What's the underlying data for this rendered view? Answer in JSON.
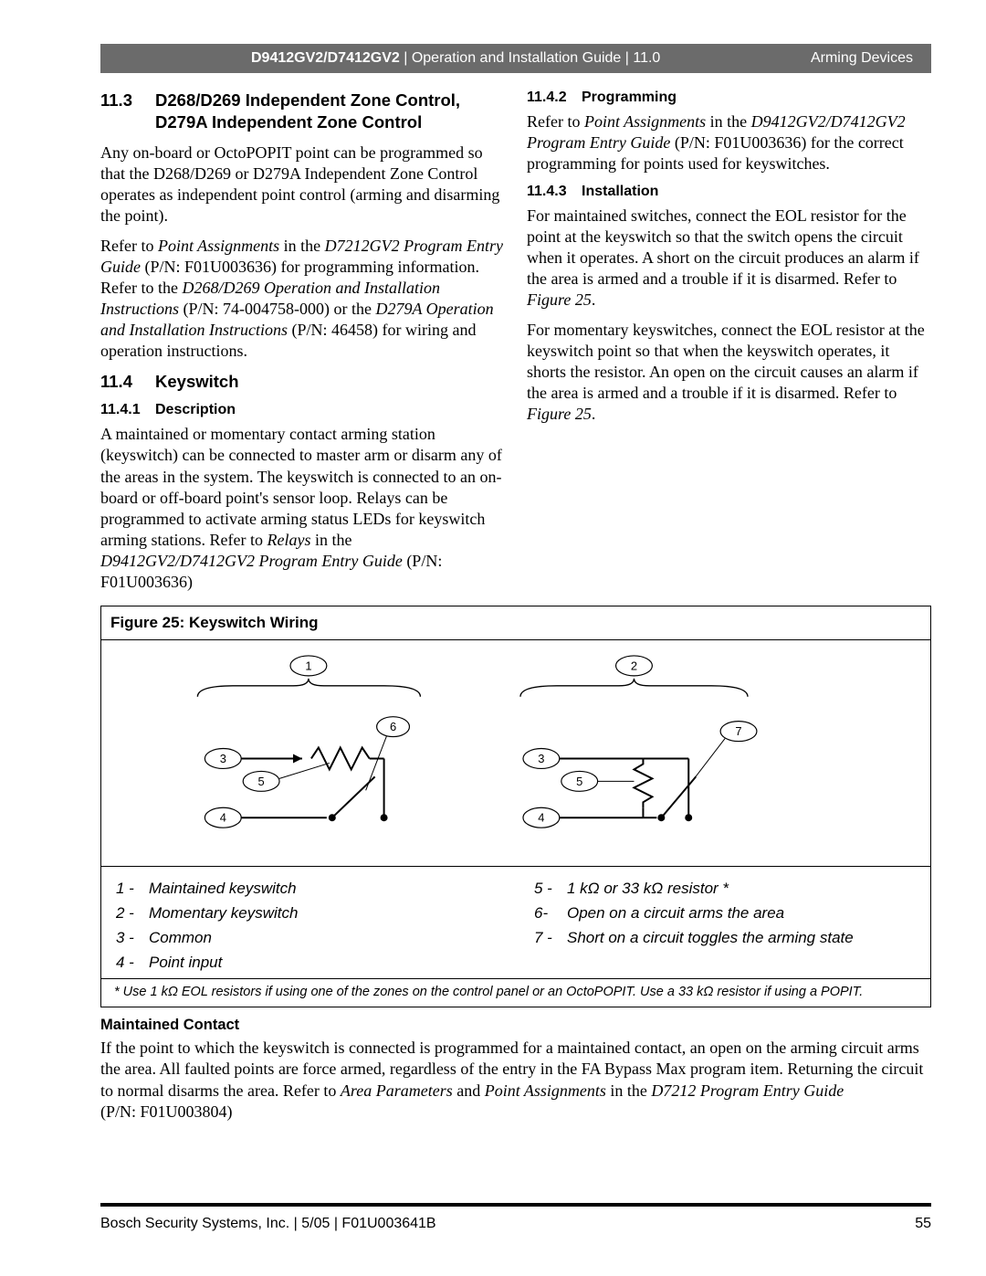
{
  "header": {
    "model_bold": "D9412GV2/D7412GV2",
    "model_rest": " | Operation and Installation Guide | 11.0",
    "right": "Arming Devices"
  },
  "left": {
    "sec11_3_num": "11.3",
    "sec11_3_title": "D268/D269 Independent Zone Control, D279A Independent Zone Control",
    "p1": "Any on-board or OctoPOPIT point can be programmed so that the D268/D269 or D279A Independent Zone Control operates as independent point control (arming and disarming the point).",
    "p2a": "Refer to ",
    "p2_i1": "Point Assignments",
    "p2b": " in the ",
    "p2_i2": "D7212GV2 Program Entry Guide",
    "p2c": " (P/N: F01U003636) for programming information. Refer to the ",
    "p2_i3": "D268/D269 Operation and Installation Instructions",
    "p2d": " (P/N: 74-004758-000) or the ",
    "p2_i4": "D279A Operation and Installation Instructions",
    "p2e": " (P/N: 46458) for wiring and operation instructions.",
    "sec11_4_num": "11.4",
    "sec11_4_title": "Keyswitch",
    "sub11_4_1_num": "11.4.1",
    "sub11_4_1_title": "Description",
    "p3a": "A maintained or momentary contact arming station (keyswitch) can be connected to master arm or disarm any of the areas in the system. The keyswitch is connected to an on-board or off-board point's sensor loop.  Relays can be programmed to activate arming status LEDs for keyswitch arming stations. Refer to ",
    "p3_i1": "Relays",
    "p3b": " in the ",
    "p3_i2": "D9412GV2/D7412GV2 Program Entry Guide",
    "p3c": " (P/N: F01U003636)"
  },
  "right": {
    "sub11_4_2_num": "11.4.2",
    "sub11_4_2_title": "Programming",
    "r1a": "Refer to ",
    "r1_i1": "Point Assignments",
    "r1b": " in the ",
    "r1_i2": "D9412GV2/D7412GV2 Program Entry Guide",
    "r1c": " (P/N: F01U003636) for the correct programming for points used for keyswitches.",
    "sub11_4_3_num": "11.4.3",
    "sub11_4_3_title": "Installation",
    "r2a": "For maintained switches, connect the EOL resistor for the point at the keyswitch so that the switch opens the circuit when it operates. A short on the circuit produces an alarm if the area is armed and a trouble if it is disarmed. Refer to ",
    "r2_i1": "Figure 25",
    "r2b": ".",
    "r3a": "For momentary keyswitches, connect the EOL resistor at the keyswitch point so that when the keyswitch operates, it shorts the resistor. An open on the circuit causes an alarm if the area is armed and a trouble if it is disarmed. Refer to ",
    "r3_i1": "Figure 25",
    "r3b": "."
  },
  "figure": {
    "title": "Figure 25:   Keyswitch Wiring",
    "bubbles": {
      "b1": "1",
      "b2": "2",
      "b3": "3",
      "b4": "4",
      "b5": "5",
      "b6": "6",
      "b7": "7"
    },
    "legend_left": [
      {
        "n": "1 -",
        "t": "Maintained keyswitch"
      },
      {
        "n": "2 -",
        "t": "Momentary keyswitch"
      },
      {
        "n": "3 -",
        "t": "Common"
      },
      {
        "n": "4 -",
        "t": "Point input"
      }
    ],
    "legend_right": [
      {
        "n": "5 -",
        "t": "1 kΩ or 33 kΩ resistor *"
      },
      {
        "n": "6-",
        "t": "Open on a circuit arms the area"
      },
      {
        "n": "7 -",
        "t": "Short on a circuit toggles the arming state"
      }
    ],
    "note": "* Use 1 kΩ EOL resistors if using one of the zones on the control panel or an OctoPOPIT. Use a 33 kΩ resistor if using a POPIT."
  },
  "after": {
    "title": "Maintained Contact",
    "pa": "If the point to which the keyswitch is connected is programmed for a maintained contact, an open on the arming circuit arms the area. All faulted points are force armed, regardless of the entry in the FA Bypass Max program item. Returning the circuit to normal disarms the area. Refer to ",
    "pi1": "Area Parameters",
    "pb": " and ",
    "pi2": "Point Assignments",
    "pc": " in the ",
    "pi3": "D7212 Program Entry Guide",
    "pd": "",
    "pe": "(P/N: F01U003804)"
  },
  "footer": {
    "left": "Bosch Security Systems, Inc. | 5/05 | F01U003641B",
    "page": "55"
  }
}
